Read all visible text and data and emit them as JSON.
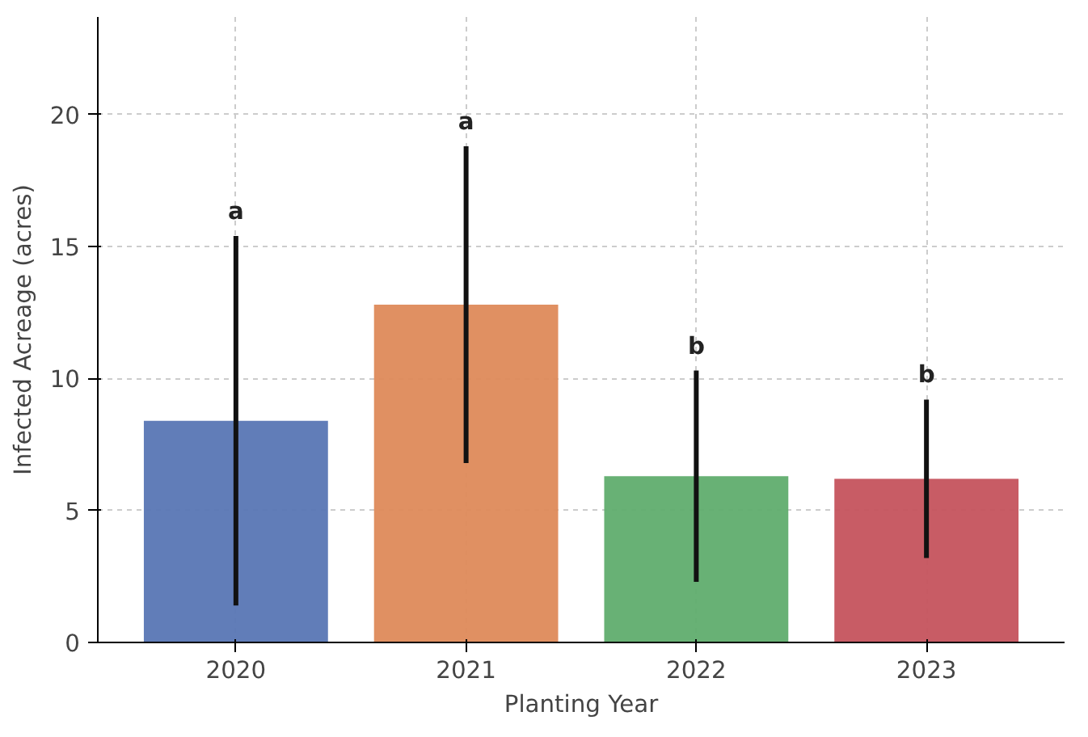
{
  "chart_data": {
    "type": "bar",
    "xlabel": "Planting Year",
    "ylabel": "Infected Acreage (acres)",
    "categories": [
      "2020",
      "2021",
      "2022",
      "2023"
    ],
    "values": [
      8.4,
      12.8,
      6.3,
      6.2
    ],
    "colors": [
      "#5876b4",
      "#de8a5a",
      "#60ad6e",
      "#c5535d"
    ],
    "errors": [
      7.0,
      6.0,
      4.0,
      3.0
    ],
    "ylim": [
      0,
      23.7
    ],
    "yticks": [
      0,
      5,
      10,
      15,
      20
    ],
    "grid": true,
    "annotations": [
      "a",
      "a",
      "b",
      "b"
    ]
  }
}
